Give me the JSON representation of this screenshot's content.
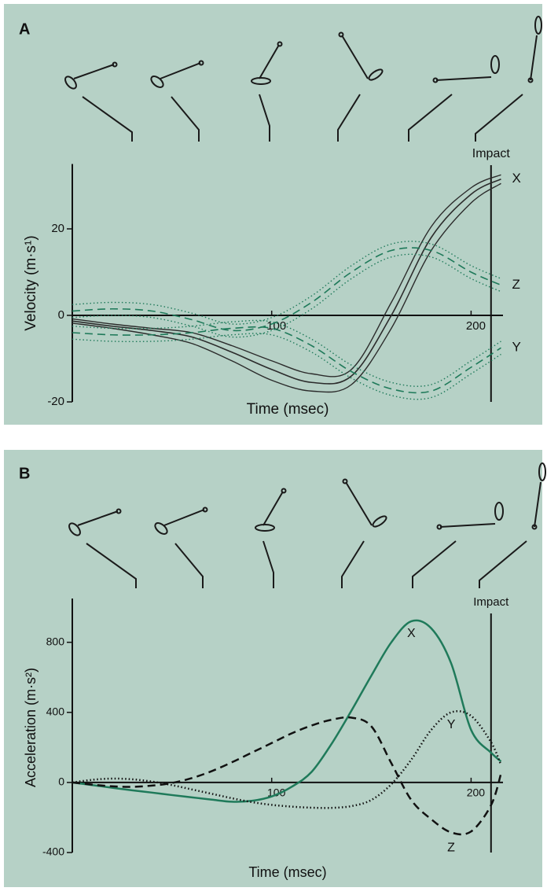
{
  "chart_data": [
    {
      "type": "line",
      "panel": "A",
      "xlabel": "Time (msec)",
      "ylabel": "Velocity (m·s¹)",
      "x": [
        0,
        20,
        40,
        60,
        80,
        100,
        120,
        140,
        160,
        180,
        200,
        215
      ],
      "xlim": [
        0,
        216
      ],
      "ylim": [
        -20,
        35
      ],
      "xticks": [
        100,
        200
      ],
      "yticks": [
        -20,
        0,
        20
      ],
      "impact": {
        "x": 210,
        "label": "Impact"
      },
      "series": [
        {
          "name": "X",
          "color": "#2b2b2b",
          "style": "solid",
          "bounds_style": "solid",
          "values": [
            -1.3,
            -2.5,
            -3.5,
            -5,
            -8.5,
            -12.5,
            -15.5,
            -14,
            0,
            18,
            28,
            31.5
          ],
          "upper": [
            -0.8,
            -2,
            -3,
            -4,
            -7,
            -10.5,
            -13.5,
            -12.5,
            3,
            20.5,
            29.5,
            32.5
          ],
          "lower": [
            -1.8,
            -3,
            -4.5,
            -6.5,
            -10.5,
            -15,
            -17.5,
            -16,
            -3,
            15,
            26,
            30.5
          ]
        },
        {
          "name": "Y",
          "color": "#1f7a5a",
          "style": "dashed",
          "bounds_style": "dotted",
          "values": [
            -4,
            -4.5,
            -4.5,
            -4,
            -3,
            -3,
            -7,
            -13,
            -17,
            -17.5,
            -12,
            -7.5
          ],
          "upper": [
            -2.5,
            -3,
            -3,
            -2.5,
            -1.5,
            -1.5,
            -5.5,
            -11.5,
            -15.5,
            -16,
            -10.5,
            -6
          ],
          "lower": [
            -5.5,
            -6,
            -6,
            -5.5,
            -4.5,
            -4.5,
            -8.5,
            -14.5,
            -18.5,
            -19,
            -13.5,
            -9
          ]
        },
        {
          "name": "Z",
          "color": "#1f7a5a",
          "style": "dashed",
          "bounds_style": "dotted",
          "values": [
            1,
            1.5,
            1,
            -1,
            -3.5,
            -2,
            3,
            10,
            15,
            15,
            10,
            7
          ],
          "upper": [
            2.5,
            3,
            2.5,
            0.5,
            -2,
            -0.5,
            4.5,
            11.5,
            16.5,
            16.5,
            11.5,
            8.5
          ],
          "lower": [
            -0.5,
            0,
            -0.5,
            -2.5,
            -5,
            -3.5,
            1.5,
            8.5,
            13.5,
            13.5,
            8.5,
            5.5
          ]
        }
      ]
    },
    {
      "type": "line",
      "panel": "B",
      "xlabel": "Time (msec)",
      "ylabel": "Acceleration (m·s²)",
      "x": [
        0,
        10,
        20,
        30,
        40,
        50,
        60,
        70,
        80,
        90,
        100,
        110,
        120,
        130,
        140,
        150,
        160,
        170,
        180,
        190,
        200,
        210,
        215
      ],
      "xlim": [
        0,
        216
      ],
      "ylim": [
        -400,
        1050
      ],
      "xticks": [
        100,
        200
      ],
      "yticks": [
        -400,
        0,
        400,
        800
      ],
      "impact": {
        "x": 210,
        "label": "Impact"
      },
      "series": [
        {
          "name": "X",
          "color": "#1f7a5a",
          "style": "solid",
          "values": [
            0,
            -15,
            -30,
            -45,
            -58,
            -72,
            -85,
            -98,
            -110,
            -105,
            -80,
            -25,
            60,
            220,
            410,
            610,
            800,
            920,
            880,
            680,
            300,
            170,
            120
          ]
        },
        {
          "name": "Y",
          "color": "#111111",
          "style": "dotted",
          "values": [
            0,
            15,
            22,
            18,
            5,
            -15,
            -40,
            -65,
            -90,
            -112,
            -128,
            -138,
            -144,
            -145,
            -135,
            -100,
            -10,
            130,
            300,
            400,
            380,
            230,
            100
          ]
        },
        {
          "name": "Z",
          "color": "#111111",
          "style": "dashed",
          "values": [
            0,
            -12,
            -22,
            -25,
            -18,
            -3,
            25,
            65,
            115,
            170,
            225,
            280,
            325,
            358,
            370,
            320,
            110,
            -100,
            -210,
            -285,
            -280,
            -130,
            50
          ]
        }
      ]
    }
  ]
}
